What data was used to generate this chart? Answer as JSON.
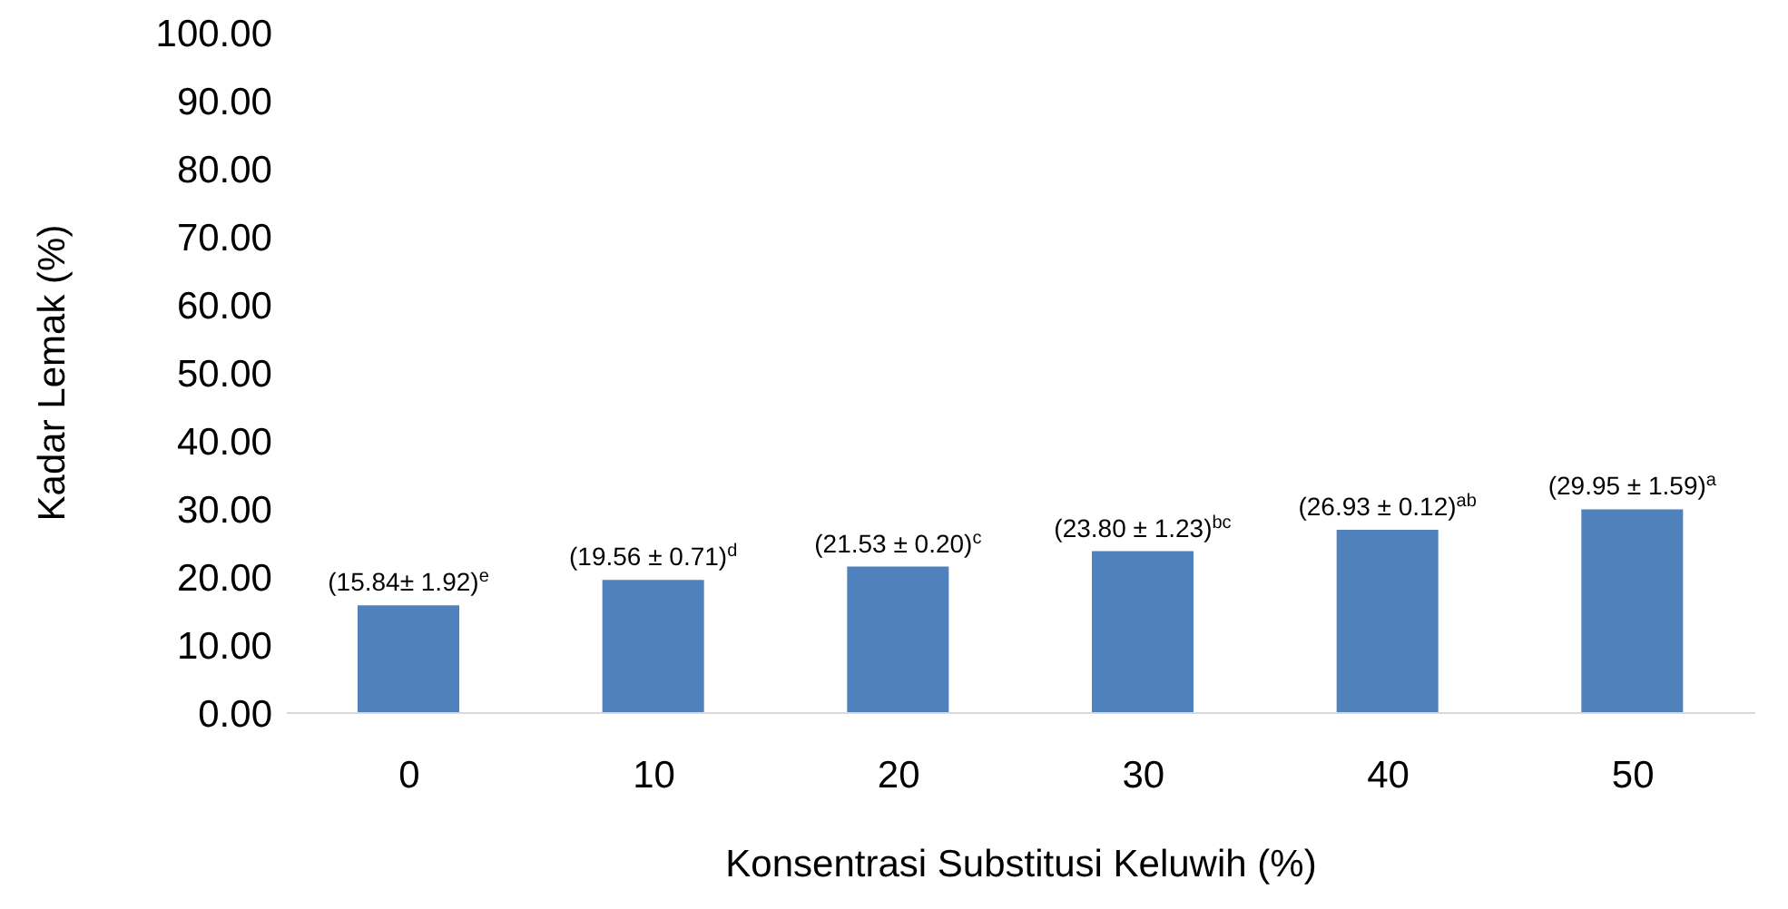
{
  "chart_data": {
    "type": "bar",
    "xlabel": "Konsentrasi Substitusi Keluwih (%)",
    "ylabel": "Kadar Lemak (%)",
    "categories": [
      "0",
      "10",
      "20",
      "30",
      "40",
      "50"
    ],
    "values": [
      15.84,
      19.56,
      21.53,
      23.8,
      26.93,
      29.95
    ],
    "value_labels": [
      "(15.84± 1.92)$^{e}$",
      "(19.56 ± 0.71)$^{d}$",
      "(21.53 ± 0.20)$^{c}$",
      "(23.80 ± 1.23)$^{bc}$",
      "(26.93 ± 0.12)$^{ab}$",
      "(29.95 ± 1.59)$^{a}$"
    ],
    "color": "#4f81bd",
    "ylim": [
      0,
      100
    ],
    "yticks": [
      {
        "value": 0,
        "label": "0.00"
      },
      {
        "value": 10,
        "label": "10.00"
      },
      {
        "value": 20,
        "label": "20.00"
      },
      {
        "value": 30,
        "label": "30.00"
      },
      {
        "value": 40,
        "label": "40.00"
      },
      {
        "value": 50,
        "label": "50.00"
      },
      {
        "value": 60,
        "label": "60.00"
      },
      {
        "value": 70,
        "label": "70.00"
      },
      {
        "value": 80,
        "label": "80.00"
      },
      {
        "value": 90,
        "label": "90.00"
      },
      {
        "value": 100,
        "label": "100.00"
      }
    ],
    "grid": false,
    "legend": false
  }
}
